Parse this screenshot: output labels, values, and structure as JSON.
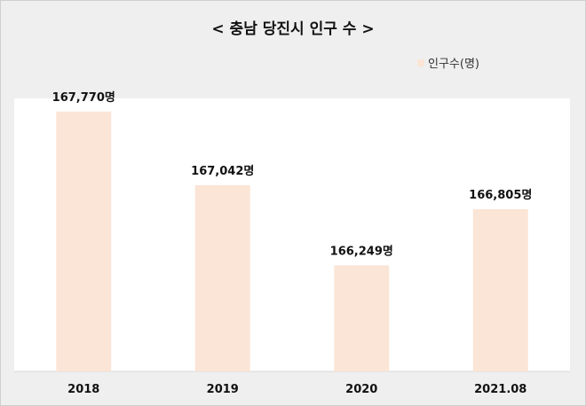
{
  "chart_data": {
    "type": "bar",
    "title": "< 충남 당진시 인구 수 >",
    "categories": [
      "2018",
      "2019",
      "2020",
      "2021.08"
    ],
    "series": [
      {
        "name": "인구수(명)",
        "values": [
          167770,
          167042,
          166249,
          166805
        ],
        "labels": [
          "167,770명",
          "167,042명",
          "166,249명",
          "166,805명"
        ]
      }
    ],
    "ylim": [
      165200,
      167900
    ],
    "grid": false,
    "legend_position": "top-right",
    "bar_color": "#fbe5d6"
  }
}
